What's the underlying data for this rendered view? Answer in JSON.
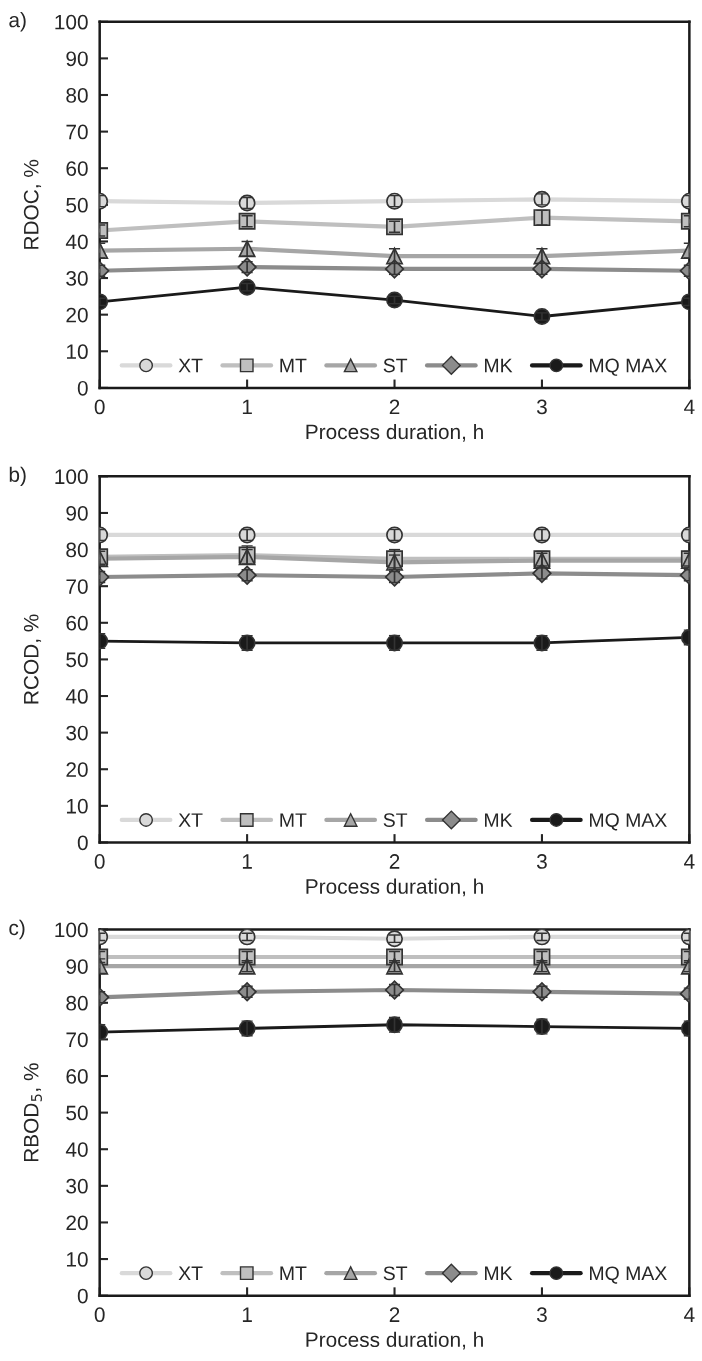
{
  "chart_data": [
    {
      "type": "line",
      "title": "a)",
      "xlabel": "Process duration, h",
      "ylabel": "RDOC, %",
      "x": [
        0,
        1,
        2,
        3,
        4
      ],
      "xlim": [
        0,
        4
      ],
      "xticks": [
        0,
        1,
        2,
        3,
        4
      ],
      "ylim": [
        0,
        100
      ],
      "yticks": [
        0,
        10,
        20,
        30,
        40,
        50,
        60,
        70,
        80,
        90,
        100
      ],
      "grid": false,
      "legend": "bottom",
      "line_style": "solid",
      "series": [
        {
          "name": "XT",
          "color": "#d9d9d9",
          "marker": "circle",
          "values": [
            51,
            50.5,
            51,
            51.5,
            51
          ],
          "errors": [
            1.5,
            1.5,
            1.5,
            1.5,
            1.5
          ]
        },
        {
          "name": "MT",
          "color": "#bfbfbf",
          "marker": "square",
          "values": [
            43,
            45.5,
            44,
            46.5,
            45.5
          ],
          "errors": [
            1.5,
            1.5,
            1.5,
            2,
            1.5
          ]
        },
        {
          "name": "ST",
          "color": "#a6a6a6",
          "marker": "triangle",
          "values": [
            37.5,
            38,
            36,
            36,
            37.5
          ],
          "errors": [
            2,
            2,
            2,
            2,
            2
          ]
        },
        {
          "name": "MK",
          "color": "#8c8c8c",
          "marker": "diamond",
          "values": [
            32,
            33,
            32.5,
            32.5,
            32
          ],
          "errors": [
            1.5,
            1.5,
            1.5,
            1.5,
            1.5
          ]
        },
        {
          "name": "MQ MAX",
          "color": "#1a1a1a",
          "marker": "circle",
          "values": [
            23.5,
            27.5,
            24,
            19.5,
            23.5
          ],
          "errors": [
            1,
            1,
            1,
            1,
            1
          ]
        }
      ]
    },
    {
      "type": "line",
      "title": "b)",
      "xlabel": "Process duration, h",
      "ylabel": "RCOD, %",
      "x": [
        0,
        1,
        2,
        3,
        4
      ],
      "xlim": [
        0,
        4
      ],
      "xticks": [
        0,
        1,
        2,
        3,
        4
      ],
      "ylim": [
        0,
        100
      ],
      "yticks": [
        0,
        10,
        20,
        30,
        40,
        50,
        60,
        70,
        80,
        90,
        100
      ],
      "grid": false,
      "legend": "bottom",
      "line_style": "solid",
      "series": [
        {
          "name": "XT",
          "color": "#d9d9d9",
          "marker": "circle",
          "values": [
            84,
            84,
            84,
            84,
            84
          ],
          "errors": [
            1.5,
            1.5,
            1.5,
            1.5,
            1.5
          ]
        },
        {
          "name": "MT",
          "color": "#bfbfbf",
          "marker": "square",
          "values": [
            78,
            78.5,
            77.5,
            77.5,
            77.5
          ],
          "errors": [
            2,
            2.5,
            2.5,
            2,
            2
          ]
        },
        {
          "name": "ST",
          "color": "#a6a6a6",
          "marker": "triangle",
          "values": [
            77.5,
            78,
            76.5,
            77,
            77
          ],
          "errors": [
            2,
            2,
            2,
            2,
            2
          ]
        },
        {
          "name": "MK",
          "color": "#8c8c8c",
          "marker": "diamond",
          "values": [
            72.5,
            73,
            72.5,
            73.5,
            73
          ],
          "errors": [
            1.5,
            1.5,
            1.5,
            1.5,
            1.5
          ]
        },
        {
          "name": "MQ MAX",
          "color": "#1a1a1a",
          "marker": "circle",
          "values": [
            55,
            54.5,
            54.5,
            54.5,
            56
          ],
          "errors": [
            2,
            2,
            2,
            2,
            2
          ]
        }
      ]
    },
    {
      "type": "line",
      "title": "c)",
      "xlabel": "Process duration, h",
      "ylabel": "RBOD$_{5}$, %",
      "x": [
        0,
        1,
        2,
        3,
        4
      ],
      "xlim": [
        0,
        4
      ],
      "xticks": [
        0,
        1,
        2,
        3,
        4
      ],
      "ylim": [
        0,
        100
      ],
      "yticks": [
        0,
        10,
        20,
        30,
        40,
        50,
        60,
        70,
        80,
        90,
        100
      ],
      "grid": false,
      "legend": "bottom",
      "line_style": "solid",
      "series": [
        {
          "name": "XT",
          "color": "#d9d9d9",
          "marker": "circle",
          "values": [
            98,
            98,
            97.5,
            98,
            98
          ],
          "errors": [
            1,
            1,
            1,
            1,
            1
          ]
        },
        {
          "name": "MT",
          "color": "#bfbfbf",
          "marker": "square",
          "values": [
            92.5,
            92.5,
            92.5,
            92.5,
            92.5
          ],
          "errors": [
            1.5,
            1.5,
            1.5,
            1.5,
            1.5
          ]
        },
        {
          "name": "ST",
          "color": "#a6a6a6",
          "marker": "triangle",
          "values": [
            90,
            90,
            90,
            90,
            90
          ],
          "errors": [
            2,
            1.5,
            1.5,
            1.5,
            1.5
          ]
        },
        {
          "name": "MK",
          "color": "#8c8c8c",
          "marker": "diamond",
          "values": [
            81.5,
            83,
            83.5,
            83,
            82.5
          ],
          "errors": [
            1.5,
            1.5,
            1.5,
            1.5,
            1.5
          ]
        },
        {
          "name": "MQ MAX",
          "color": "#1a1a1a",
          "marker": "circle",
          "values": [
            72,
            73,
            74,
            73.5,
            73
          ],
          "errors": [
            2,
            2,
            2,
            2,
            2
          ]
        }
      ]
    }
  ]
}
